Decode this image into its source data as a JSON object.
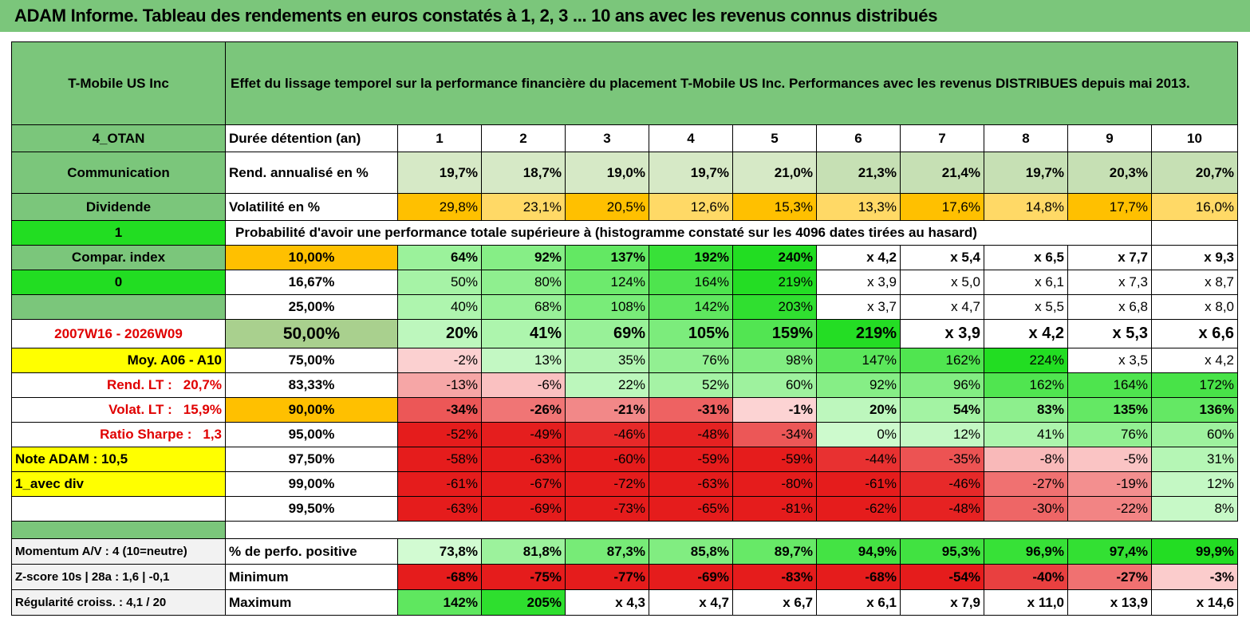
{
  "title": "ADAM Informe. Tableau des rendements en euros constatés à 1, 2, 3 ... 10 ans avec les revenus connus distribués",
  "header": {
    "name": "T-Mobile US Inc",
    "description": "Effet du lissage temporel sur la performance financière du placement T-Mobile US Inc. Performances avec les revenus DISTRIBUES depuis mai 2013."
  },
  "meta": {
    "tag": "4_OTAN",
    "sector": "Communication",
    "type": "Dividende",
    "flag1": "1",
    "compar": "Compar. index",
    "flag0": "0",
    "period": "2007W16 - 2026W09",
    "moy": "Moy. A06 - A10",
    "rend_lt_label": "Rend. LT :",
    "rend_lt_value": "20,7%",
    "volat_lt_label": "Volat. LT :",
    "volat_lt_value": "15,9%",
    "sharpe_label": "Ratio Sharpe :",
    "sharpe_value": "1,3",
    "note": "Note ADAM : 10,5",
    "avec_div": "1_avec div"
  },
  "rows_top": {
    "duree_label": "Durée détention (an)",
    "years": [
      "1",
      "2",
      "3",
      "4",
      "5",
      "6",
      "7",
      "8",
      "9",
      "10"
    ],
    "rend_label": "Rend. annualisé en %",
    "rend": [
      "19,7%",
      "18,7%",
      "19,0%",
      "19,7%",
      "21,0%",
      "21,3%",
      "21,4%",
      "19,7%",
      "20,3%",
      "20,7%"
    ],
    "vol_label": "Volatilité en %",
    "vol": [
      "29,8%",
      "23,1%",
      "20,5%",
      "12,6%",
      "15,3%",
      "13,3%",
      "17,6%",
      "14,8%",
      "17,7%",
      "16,0%"
    ],
    "prob_label": "Probabilité d'avoir une performance totale supérieure à (histogramme constaté sur les 4096 dates tirées au hasard)"
  },
  "prob_rows": [
    {
      "pct": "10,00%",
      "vals": [
        "64%",
        "92%",
        "137%",
        "192%",
        "240%",
        "x 4,2",
        "x 5,4",
        "x 6,5",
        "x 7,7",
        "x 9,3"
      ]
    },
    {
      "pct": "16,67%",
      "vals": [
        "50%",
        "80%",
        "124%",
        "164%",
        "219%",
        "x 3,9",
        "x 5,0",
        "x 6,1",
        "x 7,3",
        "x 8,7"
      ]
    },
    {
      "pct": "25,00%",
      "vals": [
        "40%",
        "68%",
        "108%",
        "142%",
        "203%",
        "x 3,7",
        "x 4,7",
        "x 5,5",
        "x 6,8",
        "x 8,0"
      ]
    },
    {
      "pct": "50,00%",
      "vals": [
        "20%",
        "41%",
        "69%",
        "105%",
        "159%",
        "219%",
        "x 3,9",
        "x 4,2",
        "x 5,3",
        "x 6,6"
      ]
    },
    {
      "pct": "75,00%",
      "vals": [
        "-2%",
        "13%",
        "35%",
        "76%",
        "98%",
        "147%",
        "162%",
        "224%",
        "x 3,5",
        "x 4,2"
      ]
    },
    {
      "pct": "83,33%",
      "vals": [
        "-13%",
        "-6%",
        "22%",
        "52%",
        "60%",
        "92%",
        "96%",
        "162%",
        "164%",
        "172%"
      ]
    },
    {
      "pct": "90,00%",
      "vals": [
        "-34%",
        "-26%",
        "-21%",
        "-31%",
        "-1%",
        "20%",
        "54%",
        "83%",
        "135%",
        "136%"
      ]
    },
    {
      "pct": "95,00%",
      "vals": [
        "-52%",
        "-49%",
        "-46%",
        "-48%",
        "-34%",
        "0%",
        "12%",
        "41%",
        "76%",
        "60%"
      ]
    },
    {
      "pct": "97,50%",
      "vals": [
        "-58%",
        "-63%",
        "-60%",
        "-59%",
        "-59%",
        "-44%",
        "-35%",
        "-8%",
        "-5%",
        "31%"
      ]
    },
    {
      "pct": "99,00%",
      "vals": [
        "-61%",
        "-67%",
        "-72%",
        "-63%",
        "-80%",
        "-61%",
        "-46%",
        "-27%",
        "-19%",
        "12%"
      ]
    },
    {
      "pct": "99,50%",
      "vals": [
        "-63%",
        "-69%",
        "-73%",
        "-65%",
        "-81%",
        "-62%",
        "-48%",
        "-30%",
        "-22%",
        "8%"
      ]
    }
  ],
  "bottom": {
    "momentum": "Momentum A/V : 4 (10=neutre)",
    "zscore": "Z-score 10s | 28a : 1,6 | -0,1",
    "regul": "Régularité croiss. : 4,1 / 20",
    "pos_label": "% de perfo. positive",
    "pos": [
      "73,8%",
      "81,8%",
      "87,3%",
      "85,8%",
      "89,7%",
      "94,9%",
      "95,3%",
      "96,9%",
      "97,4%",
      "99,9%"
    ],
    "min_label": "Minimum",
    "min": [
      "-68%",
      "-75%",
      "-77%",
      "-69%",
      "-83%",
      "-68%",
      "-54%",
      "-40%",
      "-27%",
      "-3%"
    ],
    "max_label": "Maximum",
    "max": [
      "142%",
      "205%",
      "x 4,3",
      "x 4,7",
      "x 6,7",
      "x 6,1",
      "x 7,9",
      "x 11,0",
      "x 13,9",
      "x 14,6"
    ]
  },
  "colors": {
    "header_green": "#7bc67b",
    "bright_green": "#22dd22",
    "highlight_yellow": "#ffff00",
    "volatility_orange": "#ffc000",
    "deep_red": "#e51c1c"
  }
}
